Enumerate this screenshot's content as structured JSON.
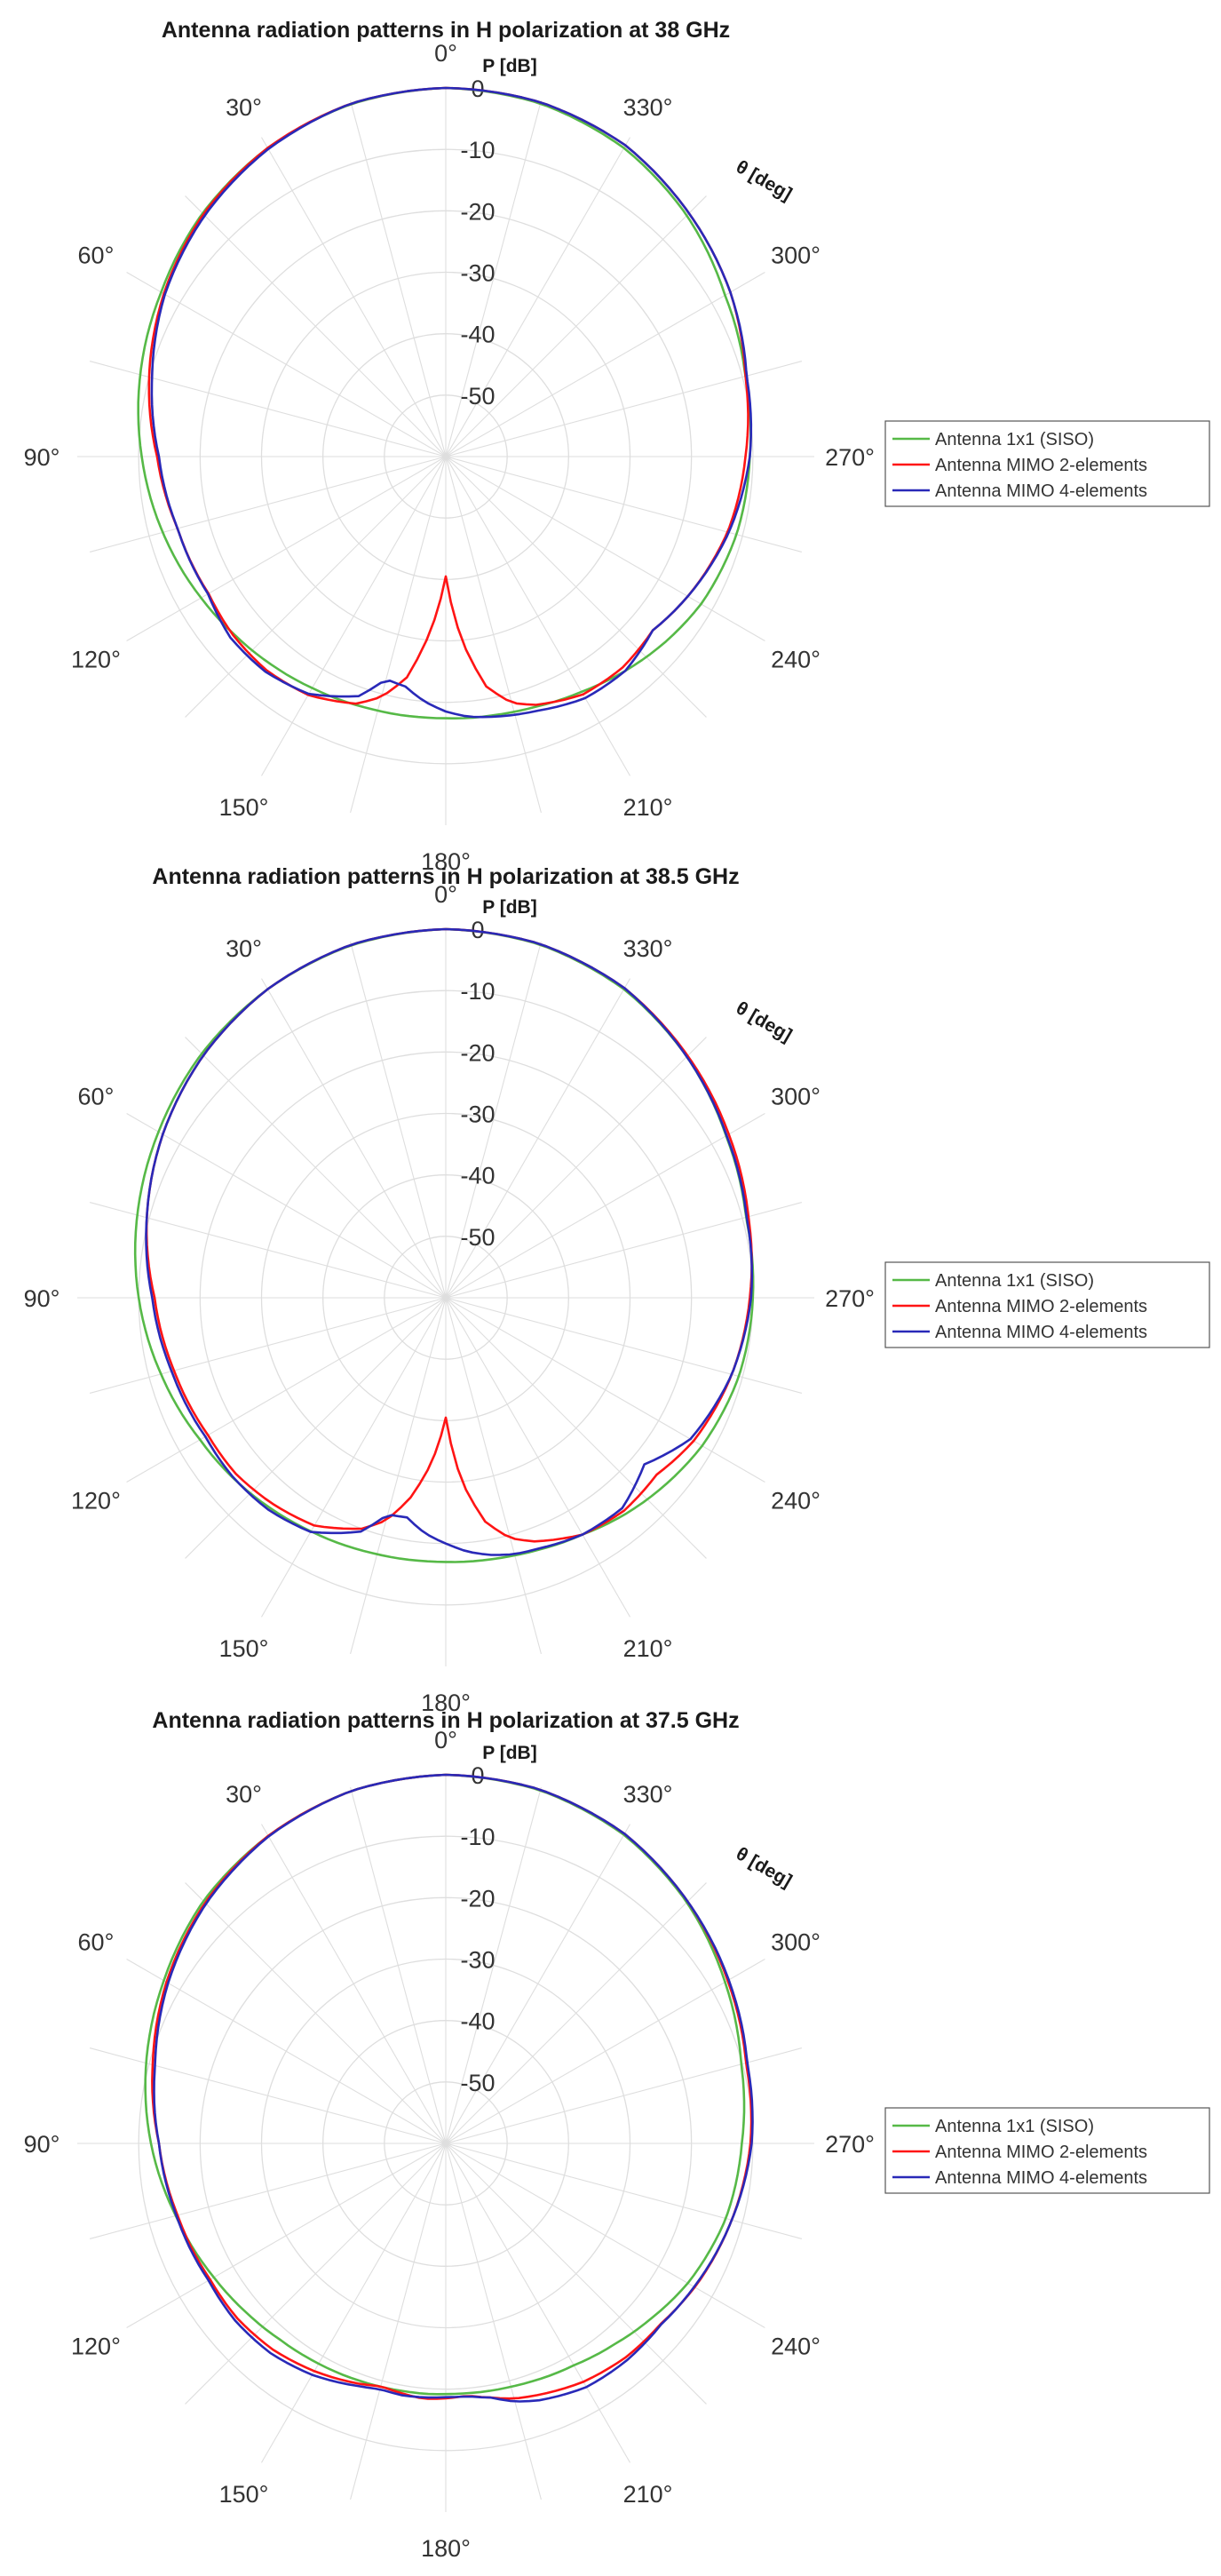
{
  "chart_data": [
    {
      "type": "polar-line",
      "title": "Antenna radiation patterns in H polarization at 38 GHz",
      "rlabel": "P [dB]",
      "thetalabel": "θ [deg]",
      "rlim": [
        -60,
        0
      ],
      "rticks": [
        "0",
        "-10",
        "-20",
        "-30",
        "-40",
        "-50"
      ],
      "angle_ticks": [
        "0°",
        "30°",
        "60°",
        "90°",
        "120°",
        "150°",
        "180°",
        "210°",
        "240°",
        "270°",
        "300°",
        "330°"
      ],
      "grid": true,
      "legend_position": "right",
      "theta": [
        0,
        15,
        30,
        45,
        60,
        75,
        90,
        105,
        120,
        130,
        140,
        150,
        160,
        165,
        170,
        175,
        180,
        185,
        190,
        195,
        200,
        210,
        220,
        230,
        240,
        255,
        270,
        285,
        300,
        315,
        330,
        345
      ],
      "series": [
        {
          "name": "Antenna 1x1 (SISO)",
          "color": "#56b947",
          "values": [
            0,
            -0.6,
            -2,
            -4,
            -6.5,
            -8.5,
            -10.5,
            -12.3,
            -14,
            -15,
            -15.8,
            -16.5,
            -17,
            -17.2,
            -17.3,
            -17.4,
            -17.4,
            -17.3,
            -17.2,
            -17,
            -16.7,
            -15.8,
            -14.5,
            -13.2,
            -12,
            -11,
            -10.5,
            -9.5,
            -7.5,
            -4.5,
            -2,
            -0.5
          ]
        },
        {
          "name": "Antenna MIMO 2-elements",
          "color": "#ff1414",
          "values": [
            0,
            -0.5,
            -2,
            -4.2,
            -7,
            -10,
            -13,
            -14.8,
            -15.4,
            -14.8,
            -14.6,
            -15.2,
            -17.2,
            -19.5,
            -23.5,
            -31.5,
            -40.5,
            -30,
            -22,
            -18.5,
            -17,
            -15.3,
            -15.2,
            -16,
            -14.5,
            -12.5,
            -11.2,
            -9.5,
            -6.5,
            -4,
            -1.5,
            -0.3
          ]
        },
        {
          "name": "Antenna MIMO 4-elements",
          "color": "#2929b8",
          "values": [
            0,
            -0.5,
            -2.2,
            -4.5,
            -7.2,
            -10.5,
            -13.3,
            -14.8,
            -15.3,
            -14.2,
            -14.3,
            -15.4,
            -18.5,
            -22.5,
            -22,
            -20,
            -18.5,
            -17.5,
            -17,
            -16.5,
            -16,
            -14.6,
            -14.5,
            -16,
            -14.5,
            -12.3,
            -10.5,
            -9.3,
            -6.5,
            -4,
            -1.5,
            -0.3
          ]
        }
      ]
    },
    {
      "type": "polar-line",
      "title": "Antenna radiation patterns in H polarization at 38.5 GHz",
      "rlabel": "P [dB]",
      "thetalabel": "θ [deg]",
      "rlim": [
        -60,
        0
      ],
      "rticks": [
        "0",
        "-10",
        "-20",
        "-30",
        "-40",
        "-50"
      ],
      "angle_ticks": [
        "0°",
        "30°",
        "60°",
        "90°",
        "120°",
        "150°",
        "180°",
        "210°",
        "240°",
        "270°",
        "300°",
        "330°"
      ],
      "grid": true,
      "legend_position": "right",
      "theta": [
        0,
        15,
        30,
        45,
        60,
        75,
        90,
        105,
        120,
        130,
        140,
        150,
        160,
        165,
        170,
        175,
        180,
        185,
        190,
        195,
        200,
        210,
        220,
        230,
        240,
        255,
        270,
        285,
        300,
        315,
        330,
        345
      ],
      "series": [
        {
          "name": "Antenna 1x1 (SISO)",
          "color": "#56b947",
          "values": [
            0,
            -0.6,
            -2,
            -3.8,
            -6,
            -8,
            -10,
            -12,
            -13.8,
            -14.6,
            -15.4,
            -16.1,
            -16.6,
            -16.8,
            -16.9,
            -17,
            -17,
            -16.9,
            -16.8,
            -16.6,
            -16.3,
            -15.5,
            -14.2,
            -13,
            -11.8,
            -10.6,
            -10,
            -9.4,
            -7.3,
            -4.5,
            -2,
            -0.5
          ]
        },
        {
          "name": "Antenna MIMO 2-elements",
          "color": "#ff1414",
          "values": [
            0,
            -0.5,
            -2,
            -4.2,
            -6.8,
            -9.6,
            -12.6,
            -14.2,
            -15.3,
            -15.4,
            -16.2,
            -17.2,
            -20,
            -22.5,
            -27,
            -33,
            -40.5,
            -30,
            -23,
            -19.5,
            -17.8,
            -15.5,
            -14.8,
            -15.2,
            -13.4,
            -11.8,
            -10.5,
            -9,
            -6.8,
            -4.3,
            -1.8,
            -0.4
          ]
        },
        {
          "name": "Antenna MIMO 4-elements",
          "color": "#2929b8",
          "values": [
            0,
            -0.5,
            -2,
            -4.2,
            -6.8,
            -9.6,
            -12.2,
            -13.8,
            -14.8,
            -14.7,
            -15,
            -16,
            -19.5,
            -23.5,
            -23.7,
            -21.5,
            -20,
            -18.5,
            -17.5,
            -16.8,
            -16.5,
            -15.5,
            -15.3,
            -17.8,
            -14,
            -11.8,
            -10.3,
            -9.3,
            -7.2,
            -4.5,
            -1.8,
            -0.4
          ]
        }
      ]
    },
    {
      "type": "polar-line",
      "title": "Antenna radiation patterns in H polarization at 37.5 GHz",
      "rlabel": "P [dB]",
      "thetalabel": "θ [deg]",
      "rlim": [
        -60,
        0
      ],
      "rticks": [
        "0",
        "-10",
        "-20",
        "-30",
        "-40",
        "-50"
      ],
      "angle_ticks": [
        "0°",
        "30°",
        "60°",
        "90°",
        "120°",
        "150°",
        "180°",
        "210°",
        "240°",
        "270°",
        "300°",
        "330°"
      ],
      "grid": true,
      "legend_position": "right",
      "theta": [
        0,
        15,
        30,
        45,
        60,
        75,
        90,
        105,
        120,
        130,
        140,
        150,
        160,
        165,
        170,
        175,
        180,
        185,
        190,
        195,
        200,
        210,
        220,
        230,
        240,
        255,
        270,
        285,
        300,
        315,
        330,
        345
      ],
      "series": [
        {
          "name": "Antenna 1x1 (SISO)",
          "color": "#56b947",
          "values": [
            0,
            -0.6,
            -2.2,
            -4.2,
            -7,
            -9.5,
            -12,
            -14.5,
            -16.4,
            -17.4,
            -18.2,
            -18.6,
            -18.9,
            -19,
            -19.1,
            -19.1,
            -19.2,
            -19.2,
            -19.1,
            -19,
            -18.8,
            -18.3,
            -17.3,
            -16,
            -14.5,
            -12.8,
            -11.8,
            -10.2,
            -7.5,
            -4.5,
            -2,
            -0.5
          ]
        },
        {
          "name": "Antenna MIMO 2-elements",
          "color": "#ff1414",
          "values": [
            0,
            -0.6,
            -2.2,
            -4.6,
            -7.5,
            -10.6,
            -13.3,
            -14.8,
            -15.7,
            -15.7,
            -16.2,
            -17.2,
            -18.4,
            -19.1,
            -18.7,
            -18.3,
            -18.5,
            -18.8,
            -18,
            -17,
            -16.4,
            -15.2,
            -14.5,
            -14.3,
            -13.2,
            -11.8,
            -10.4,
            -9.4,
            -7,
            -4.3,
            -1.8,
            -0.4
          ]
        },
        {
          "name": "Antenna MIMO 4-elements",
          "color": "#2929b8",
          "values": [
            0,
            -0.6,
            -2.3,
            -4.8,
            -7.8,
            -11,
            -13.3,
            -14.6,
            -15.4,
            -15.2,
            -15.5,
            -16.5,
            -18,
            -18.6,
            -18.4,
            -18.5,
            -18.7,
            -18.7,
            -18,
            -16.5,
            -15.5,
            -14.2,
            -14,
            -14.2,
            -13.3,
            -11.8,
            -10.2,
            -9.2,
            -6.8,
            -4.3,
            -1.8,
            -0.4
          ]
        }
      ]
    }
  ]
}
